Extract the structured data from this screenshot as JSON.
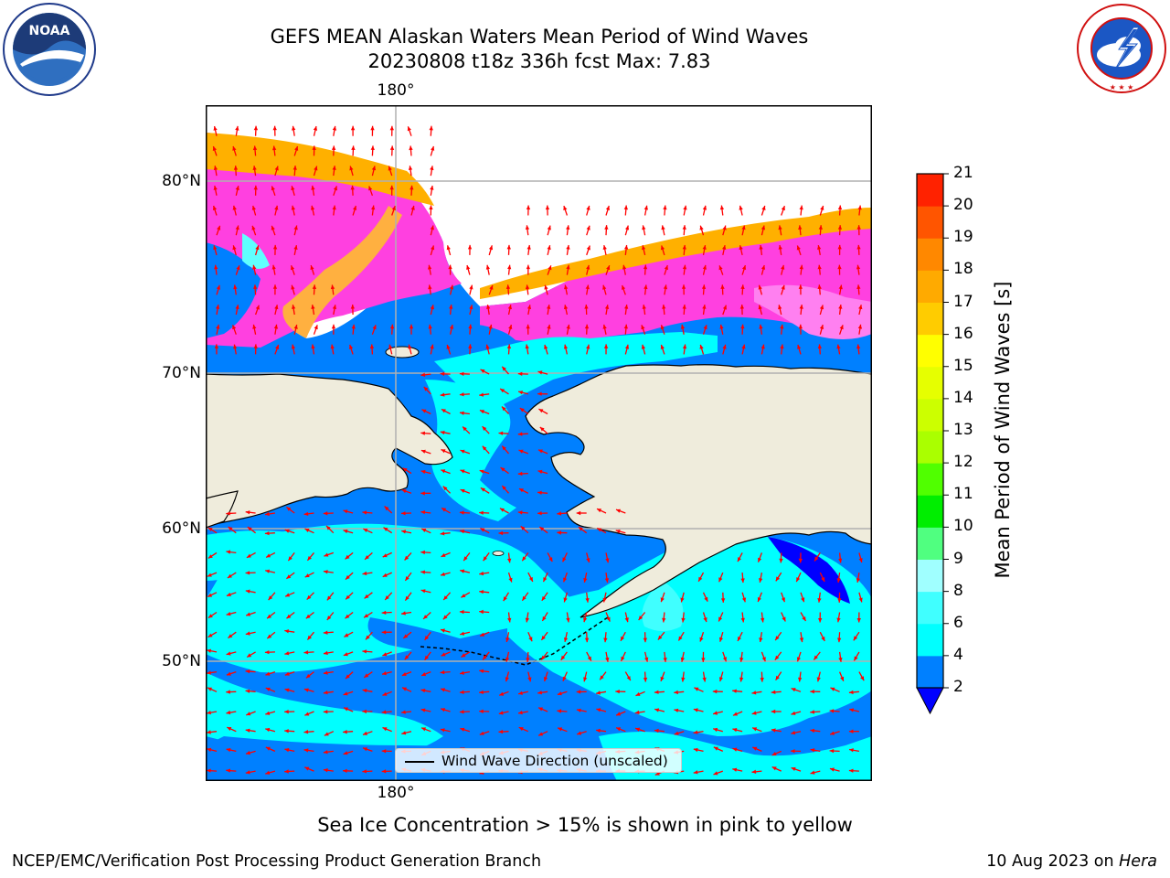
{
  "title": {
    "line1": "GEFS MEAN Alaskan Waters Mean Period of Wind Waves",
    "line2": "20230808 t18z 336h fcst   Max: 7.83"
  },
  "map": {
    "lon_label_top": "180°",
    "lon_label_bottom": "180°",
    "lat_labels": [
      "80°N",
      "70°N",
      "60°N",
      "50°N"
    ],
    "legend_label": "Wind Wave Direction (unscaled)",
    "arrow_color": "#ff0000",
    "land_color": "#efecdc",
    "grid_color": "#b0b0b0"
  },
  "colorbar": {
    "label": "Mean Period of Wind Waves [s]",
    "ticks": [
      "2",
      "4",
      "6",
      "8",
      "9",
      "10",
      "11",
      "12",
      "13",
      "14",
      "15",
      "16",
      "17",
      "18",
      "19",
      "20",
      "21"
    ],
    "colors": [
      "#0000ff",
      "#0080ff",
      "#00ffff",
      "#40ffff",
      "#a0ffff",
      "#50ff80",
      "#00ee00",
      "#50ff00",
      "#aaff00",
      "#ccff00",
      "#e6ff00",
      "#ffff00",
      "#ffcc00",
      "#ffaa00",
      "#ff8800",
      "#ff5500",
      "#ff2200",
      "#ff0000"
    ],
    "extend": "min"
  },
  "logos": {
    "left_text": "NOAA",
    "right_text": "NATIONAL WEATHER SERVICE"
  },
  "footer": {
    "note": "Sea Ice Concentration > 15% is shown in pink to yellow",
    "left": "NCEP/EMC/Verification Post Processing Product Generation Branch",
    "right_date": "10 Aug 2023 on ",
    "right_host": "Hera"
  }
}
